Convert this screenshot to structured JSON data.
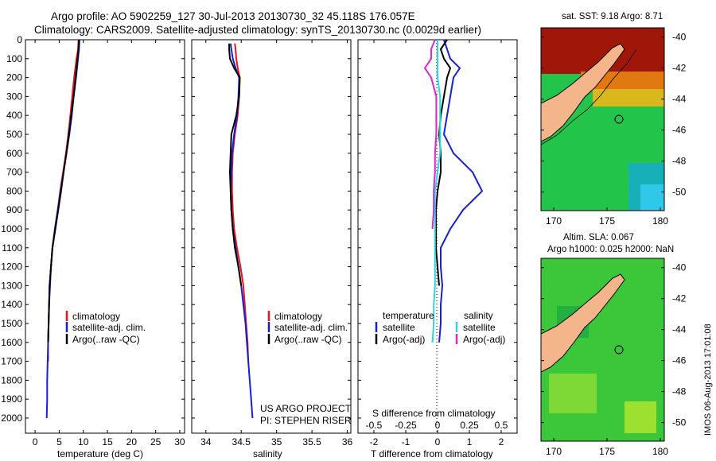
{
  "title": {
    "line1": "Argo profile: AO 5902259_127 30-Jul-2013 20130730_32 45.118S 176.057E",
    "line2": "Climatology: CARS2009. Satellite-adjusted climatology: synTS_20130730.nc (0.0029d earlier)"
  },
  "colors": {
    "climatology": "#e8141e",
    "satellite": "#1420d2",
    "argo": "#000000",
    "sat_salinity": "#27d9e6",
    "argo_salinity_adj": "#e024d6",
    "land": "#f5b58a"
  },
  "chart_data": [
    {
      "type": "line",
      "id": "temperature",
      "xlabel": "temperature (deg C)",
      "xticks": [
        "0",
        "5",
        "10",
        "15",
        "20",
        "25",
        "30"
      ],
      "xlim": [
        -2,
        31
      ],
      "ylim": [
        0,
        2080
      ],
      "yticks": [
        "0",
        "100",
        "200",
        "300",
        "400",
        "500",
        "600",
        "700",
        "800",
        "900",
        "1000",
        "1100",
        "1200",
        "1300",
        "1400",
        "1500",
        "1600",
        "1700",
        "1800",
        "1900",
        "2000"
      ],
      "legend": [
        "climatology",
        "satellite-adj. clim.",
        "Argo(..raw -QC)"
      ],
      "series": [
        {
          "name": "climatology",
          "depth": [
            0,
            50,
            100,
            200,
            300,
            400,
            500,
            600,
            700,
            800,
            900,
            1000,
            1100,
            1200,
            1300,
            1400,
            1500,
            1600,
            1700
          ],
          "values": [
            9.0,
            8.9,
            8.6,
            8.1,
            7.7,
            7.3,
            6.9,
            6.4,
            5.8,
            5.2,
            4.7,
            4.1,
            3.6,
            3.3,
            3.0,
            2.9,
            2.8,
            2.7,
            2.7
          ]
        },
        {
          "name": "satellite-adj. clim.",
          "depth": [
            0,
            50,
            100,
            200,
            300,
            400,
            500,
            600,
            700,
            800,
            900,
            1000,
            1100,
            1200,
            1300,
            1400,
            1500,
            1600,
            1700,
            1800,
            1900,
            2000
          ],
          "values": [
            9.2,
            9.1,
            8.9,
            8.5,
            8.0,
            7.6,
            7.1,
            6.5,
            5.9,
            5.3,
            4.7,
            4.1,
            3.6,
            3.3,
            3.1,
            2.9,
            2.8,
            2.7,
            2.6,
            2.5,
            2.5,
            2.4
          ]
        },
        {
          "name": "Argo(..raw -QC)",
          "depth": [
            0,
            50,
            100,
            200,
            300,
            400,
            500,
            600,
            700,
            800,
            900,
            1000,
            1100,
            1200,
            1300,
            1400,
            1500,
            1600
          ],
          "values": [
            9.1,
            9.0,
            8.8,
            8.4,
            8.0,
            7.5,
            7.0,
            6.5,
            5.9,
            5.4,
            4.8,
            4.2,
            3.6,
            3.3,
            3.0,
            2.9,
            2.8,
            2.7
          ]
        }
      ]
    },
    {
      "type": "line",
      "id": "salinity",
      "xlabel": "salinity",
      "xticks": [
        "34",
        "34.5",
        "35",
        "35.5",
        "36"
      ],
      "xlim": [
        33.8,
        36.05
      ],
      "ylim": [
        0,
        2080
      ],
      "legend": [
        "climatology",
        "satellite-adj. clim.",
        "Argo(..raw -QC)"
      ],
      "annotation": [
        "US ARGO PROJECT",
        "PI: STEPHEN RISER"
      ],
      "series": [
        {
          "name": "climatology",
          "depth": [
            20,
            50,
            100,
            150,
            200,
            300,
            400,
            500,
            600,
            700,
            800,
            900,
            1000,
            1100,
            1200,
            1300,
            1400,
            1500,
            1600,
            1700
          ],
          "values": [
            34.41,
            34.42,
            34.43,
            34.45,
            34.48,
            34.47,
            34.45,
            34.41,
            34.38,
            34.37,
            34.37,
            34.38,
            34.4,
            34.44,
            34.49,
            34.53,
            34.55,
            34.57,
            34.59,
            34.6
          ]
        },
        {
          "name": "satellite-adj. clim.",
          "depth": [
            20,
            50,
            100,
            150,
            200,
            300,
            400,
            500,
            600,
            700,
            800,
            900,
            1000,
            1100,
            1200,
            1300,
            1400,
            1500,
            1600,
            1700,
            1800,
            1900,
            2000
          ],
          "values": [
            34.35,
            34.36,
            34.38,
            34.42,
            34.47,
            34.46,
            34.44,
            34.4,
            34.37,
            34.36,
            34.35,
            34.36,
            34.38,
            34.42,
            34.46,
            34.5,
            34.53,
            34.56,
            34.58,
            34.6,
            34.62,
            34.64,
            34.66
          ]
        },
        {
          "name": "Argo(..raw -QC)",
          "depth": [
            20,
            50,
            100,
            150,
            200,
            300,
            400,
            500,
            600,
            700,
            800,
            900,
            1000,
            1100,
            1200,
            1300
          ],
          "values": [
            34.33,
            34.33,
            34.34,
            34.4,
            34.48,
            34.47,
            34.43,
            34.36,
            34.35,
            34.34,
            34.35,
            34.36,
            34.38,
            34.41,
            34.46,
            34.5
          ]
        }
      ]
    },
    {
      "type": "line",
      "id": "differences",
      "xlabel": "T difference from climatology",
      "xlabel_top": "S difference from climatology",
      "xticks": [
        "-2",
        "-1",
        "0",
        "1",
        "2"
      ],
      "xticks_top": [
        "-0.5",
        "-0.25",
        "0",
        "0.25",
        "0.5"
      ],
      "xlim": [
        -2.5,
        2.5
      ],
      "ylim": [
        0,
        2080
      ],
      "legend": {
        "temperature_title": "temperature",
        "salinity_title": "salinity",
        "items": [
          "satellite",
          "Argo(-adj)",
          "satellite",
          "Argo(-adj)"
        ]
      },
      "series": [
        {
          "name": "satellite",
          "group": "temperature",
          "depth": [
            0,
            50,
            100,
            150,
            200,
            300,
            400,
            500,
            600,
            700,
            800,
            900,
            1000,
            1100,
            1200,
            1300,
            1400,
            1500,
            1600
          ],
          "values": [
            0.2,
            0.3,
            0.4,
            0.7,
            0.5,
            0.4,
            0.3,
            0.2,
            0.5,
            1.1,
            1.4,
            0.8,
            0.4,
            0.1,
            0.1,
            0.15,
            0.1,
            0.1,
            0.05
          ]
        },
        {
          "name": "Argo(-adj)",
          "group": "temperature",
          "depth": [
            0,
            50,
            100,
            150,
            200,
            300,
            400,
            500,
            600,
            700,
            800,
            900,
            1000,
            1100,
            1200,
            1300
          ],
          "values": [
            0.3,
            0.1,
            0.2,
            0.4,
            0.3,
            0.2,
            0.1,
            0.05,
            0.1,
            0.1,
            0.0,
            -0.05,
            -0.05,
            -0.05,
            0.0,
            0.05
          ]
        },
        {
          "name": "satellite",
          "group": "salinity",
          "depth": [
            0,
            100,
            200,
            300,
            400,
            500,
            600,
            700,
            800,
            900,
            1000,
            1100,
            1200,
            1300,
            1400,
            1500,
            1600
          ],
          "values": [
            0.0,
            0.0,
            0.0,
            0.02,
            0.02,
            0.02,
            0.02,
            0.0,
            -0.02,
            -0.02,
            -0.02,
            -0.02,
            -0.02,
            -0.02,
            -0.03,
            -0.03,
            -0.04
          ]
        },
        {
          "name": "Argo(-adj)",
          "group": "salinity",
          "depth": [
            0,
            50,
            100,
            150,
            200,
            300,
            400,
            500,
            600,
            700,
            800,
            900,
            1000
          ],
          "values": [
            -0.02,
            -0.05,
            -0.05,
            -0.1,
            -0.05,
            -0.01,
            -0.01,
            -0.01,
            -0.02,
            -0.02,
            -0.03,
            -0.03,
            -0.04
          ]
        }
      ]
    }
  ],
  "maps": {
    "sst": {
      "title": "sat. SST: 9.18 Argo: 8.71",
      "yticks": [
        "-40",
        "-42",
        "-44",
        "-46",
        "-48",
        "-50"
      ],
      "xticks": [
        "170",
        "175",
        "180"
      ]
    },
    "sla": {
      "title_line1": "Altim. SLA: 0.067",
      "title_line2": "Argo h1000: 0.025 h2000: NaN",
      "yticks": [
        "-40",
        "-42",
        "-44",
        "-46",
        "-48",
        "-50"
      ],
      "xticks": [
        "170",
        "175",
        "180"
      ]
    },
    "stamp": "IMOS 06-Aug-2013 17:01:08"
  }
}
